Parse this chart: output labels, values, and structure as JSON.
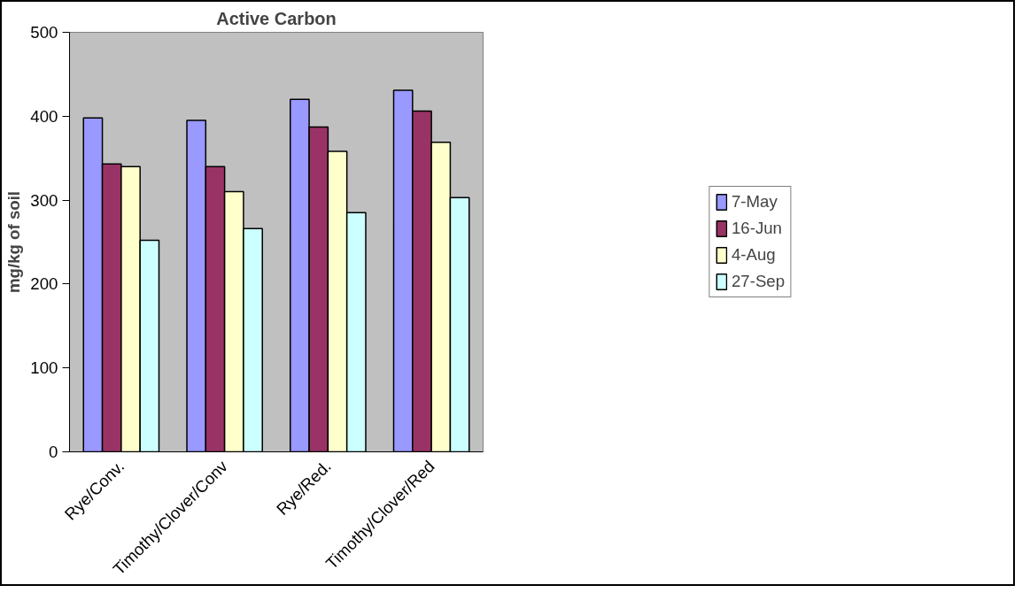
{
  "chart_data": {
    "type": "bar",
    "title": "Active Carbon",
    "ylabel": "mg/kg of soil",
    "categories": [
      "Rye/Conv.",
      "Timothy/Clover/Conv",
      "Rye/Red.",
      "Timothy/Clover/Red"
    ],
    "series": [
      {
        "name": "7-May",
        "color": "#9999ff",
        "values": [
          398,
          395,
          420,
          431
        ]
      },
      {
        "name": "16-Jun",
        "color": "#993366",
        "values": [
          343,
          340,
          387,
          406
        ]
      },
      {
        "name": "4-Aug",
        "color": "#ffffcc",
        "values": [
          340,
          310,
          358,
          369
        ]
      },
      {
        "name": "27-Sep",
        "color": "#ccffff",
        "values": [
          252,
          266,
          285,
          303
        ]
      }
    ],
    "ylim": [
      0,
      500
    ],
    "yticks": [
      0,
      100,
      200,
      300,
      400,
      500
    ],
    "legend": "right"
  }
}
